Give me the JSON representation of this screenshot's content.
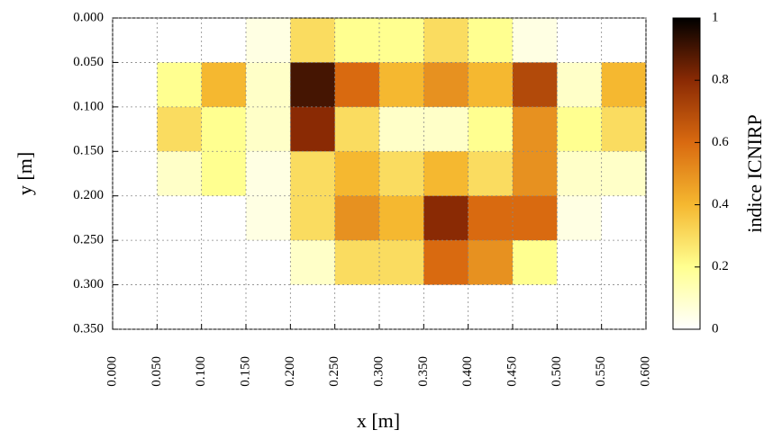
{
  "chart_data": {
    "type": "heatmap",
    "x_label": "x [m]",
    "y_label": "y [m]",
    "colorbar_label": "indice ICNIRP",
    "x": [
      0.025,
      0.075,
      0.125,
      0.175,
      0.225,
      0.275,
      0.325,
      0.375,
      0.425,
      0.475,
      0.525,
      0.575
    ],
    "y": [
      0.025,
      0.075,
      0.125,
      0.175,
      0.225,
      0.275,
      0.325
    ],
    "z": [
      [
        0,
        0,
        0,
        0.05,
        0.3,
        0.2,
        0.2,
        0.3,
        0.2,
        0.05,
        0,
        0
      ],
      [
        0,
        0.2,
        0.4,
        0.1,
        0.9,
        0.6,
        0.4,
        0.5,
        0.4,
        0.7,
        0.1,
        0.4
      ],
      [
        0,
        0.3,
        0.2,
        0.1,
        0.8,
        0.3,
        0.1,
        0.1,
        0.2,
        0.5,
        0.2,
        0.3
      ],
      [
        0,
        0.1,
        0.2,
        0.05,
        0.3,
        0.4,
        0.3,
        0.4,
        0.3,
        0.5,
        0.1,
        0.1
      ],
      [
        0,
        0,
        0,
        0.05,
        0.3,
        0.5,
        0.4,
        0.8,
        0.6,
        0.6,
        0.05,
        0
      ],
      [
        0,
        0,
        0,
        0,
        0.1,
        0.3,
        0.3,
        0.6,
        0.5,
        0.2,
        0,
        0
      ],
      [
        0,
        0,
        0,
        0,
        0,
        0,
        0,
        0,
        0,
        0,
        0,
        0
      ]
    ],
    "xlim": [
      0,
      0.6
    ],
    "ylim": [
      0,
      0.35
    ],
    "y_reversed": true,
    "xticks": [
      {
        "value": 0,
        "label": "0.000"
      },
      {
        "value": 0.05,
        "label": "0.050"
      },
      {
        "value": 0.1,
        "label": "0.100"
      },
      {
        "value": 0.15,
        "label": "0.150"
      },
      {
        "value": 0.2,
        "label": "0.200"
      },
      {
        "value": 0.25,
        "label": "0.250"
      },
      {
        "value": 0.3,
        "label": "0.300"
      },
      {
        "value": 0.35,
        "label": "0.350"
      },
      {
        "value": 0.4,
        "label": "0.400"
      },
      {
        "value": 0.45,
        "label": "0.450"
      },
      {
        "value": 0.5,
        "label": "0.500"
      },
      {
        "value": 0.55,
        "label": "0.550"
      },
      {
        "value": 0.6,
        "label": "0.600"
      }
    ],
    "yticks": [
      {
        "value": 0,
        "label": "0.000"
      },
      {
        "value": 0.05,
        "label": "0.050"
      },
      {
        "value": 0.1,
        "label": "0.100"
      },
      {
        "value": 0.15,
        "label": "0.150"
      },
      {
        "value": 0.2,
        "label": "0.200"
      },
      {
        "value": 0.25,
        "label": "0.250"
      },
      {
        "value": 0.3,
        "label": "0.300"
      },
      {
        "value": 0.35,
        "label": "0.350"
      }
    ],
    "zlim": [
      0,
      1
    ],
    "zticks": [
      0,
      0.2,
      0.4,
      0.6,
      0.8,
      1
    ],
    "colorscale": [
      "#ffffff",
      "#ffff90",
      "#f5b830",
      "#d96a10",
      "#8a2a04",
      "#000000"
    ],
    "grid": true
  }
}
